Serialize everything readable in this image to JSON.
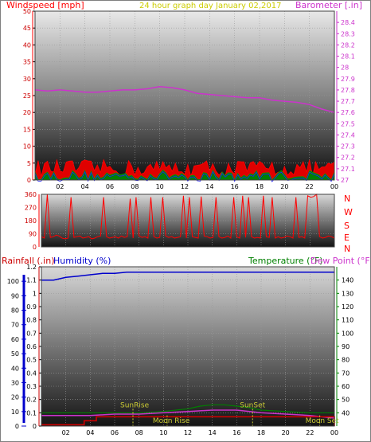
{
  "header": {
    "windspeed_label": "Windspeed [mph]",
    "graph_title": "24 hour graph day   January 02,2017",
    "barometer_label": "Barometer [.in]"
  },
  "bottom_header": {
    "rainfall_label": "Rainfall (.in)",
    "humidity_label": "Humidity (%)",
    "temperature_label": "Temperature (°F)",
    "dewpoint_label": "Dew Point (°F)"
  },
  "compass_labels": [
    "N",
    "W",
    "S",
    "E",
    "N"
  ],
  "annotations": {
    "sunrise": "SunRise",
    "sunset": "SunSet",
    "moonrise": "Moon Rise",
    "moonset": "Moon Set"
  },
  "colors": {
    "windspeed": "#ff0000",
    "wind_gust_fill": "#e00000",
    "wind_avg_fill": "#008000",
    "barometer": "#cc33cc",
    "title": "#cccc00",
    "humidity": "#0000cc",
    "temperature": "#008000",
    "dewpoint": "#cc33cc",
    "rain": "#cc0000",
    "axis_label_red": "#ff0000",
    "axis_label_green": "#008000",
    "axis_label_blue": "#0000cc",
    "sun_moon_marker": "#cccc33",
    "moon_text": "#cccc33"
  },
  "chart_data": [
    {
      "type": "area",
      "title": "24 hour graph day   January 02,2017",
      "x_ticks": [
        "02",
        "04",
        "06",
        "08",
        "10",
        "12",
        "14",
        "16",
        "18",
        "20",
        "22",
        "00"
      ],
      "x_range": [
        0,
        24
      ],
      "grid": true,
      "left_axis": {
        "label": "Windspeed [mph]",
        "ylim": [
          0,
          50
        ],
        "ticks": [
          "0",
          "5",
          "10",
          "15",
          "20",
          "25",
          "30",
          "35",
          "40",
          "45",
          "50"
        ]
      },
      "right_axis": {
        "label": "Barometer [.in]",
        "ylim": [
          27.0,
          28.5
        ],
        "ticks": [
          "27",
          "27.1",
          "27.2",
          "27.3",
          "27.4",
          "27.5",
          "27.6",
          "27.7",
          "27.8",
          "27.9",
          "28",
          "28.1",
          "28.2",
          "28.3",
          "28.4"
        ]
      },
      "series": [
        {
          "name": "Barometer [.in]",
          "axis": "right",
          "x": [
            0,
            1,
            2,
            3,
            4,
            5,
            6,
            7,
            8,
            9,
            10,
            11,
            12,
            13,
            14,
            15,
            16,
            17,
            18,
            19,
            20,
            21,
            22,
            23,
            24
          ],
          "values": [
            27.8,
            27.79,
            27.8,
            27.79,
            27.78,
            27.78,
            27.79,
            27.8,
            27.8,
            27.81,
            27.83,
            27.82,
            27.8,
            27.77,
            27.76,
            27.75,
            27.74,
            27.73,
            27.73,
            27.71,
            27.7,
            27.69,
            27.67,
            27.63,
            27.6
          ]
        }
      ],
      "wind_gust_band": {
        "x_step": 0.25,
        "min": 1,
        "max": 6
      },
      "wind_avg_band": {
        "x_step": 0.25,
        "min": 0,
        "max": 3
      }
    },
    {
      "type": "line",
      "title": "",
      "y_ticks": [
        "0",
        "90",
        "180",
        "270",
        "360"
      ],
      "ylim": [
        0,
        360
      ],
      "x_range": [
        0,
        24
      ],
      "grid": true,
      "series": [
        {
          "name": "",
          "values": [
            70,
            60,
            360,
            65,
            70,
            80,
            75,
            60,
            55,
            60,
            340,
            65,
            70,
            75,
            60,
            65,
            70,
            55,
            60,
            70,
            75,
            340,
            70,
            60,
            65,
            70,
            60,
            75,
            65,
            70,
            330,
            60,
            340,
            75,
            65,
            70,
            60,
            340,
            70,
            60,
            65,
            340,
            75,
            65,
            70,
            60,
            65,
            70,
            350,
            60,
            340,
            70,
            65,
            60,
            345,
            75,
            70,
            60,
            65,
            340,
            70,
            60,
            65,
            75,
            60,
            340,
            70,
            60,
            350,
            65,
            340,
            70,
            60,
            65,
            60,
            350,
            70,
            65,
            340,
            60,
            70,
            60,
            65,
            75,
            70,
            60,
            340,
            65,
            70,
            60,
            350,
            340,
            345,
            360,
            70,
            60,
            65,
            75,
            70,
            60
          ]
        }
      ]
    },
    {
      "type": "line",
      "title": "",
      "x_ticks": [
        "02",
        "04",
        "06",
        "08",
        "10",
        "12",
        "14",
        "16",
        "18",
        "20",
        "22",
        "00"
      ],
      "x_range": [
        0,
        24
      ],
      "grid": true,
      "rain_axis": {
        "label": "Rainfall (.in)",
        "ylim": [
          0,
          1.2
        ],
        "ticks": [
          "0",
          "0.1",
          "0.2",
          "0.3",
          "0.4",
          "0.5",
          "0.6",
          "0.7",
          "0.8",
          "0.9",
          "1",
          "1.1",
          "1.2"
        ]
      },
      "humidity_axis": {
        "label": "Humidity (%)",
        "ylim": [
          0,
          110
        ],
        "ticks": [
          "0",
          "10",
          "20",
          "30",
          "40",
          "50",
          "60",
          "70",
          "80",
          "90",
          "100"
        ]
      },
      "temperature_axis": {
        "label": "Temperature (°F)",
        "ylim": [
          30,
          150
        ],
        "ticks": [
          "40",
          "50",
          "60",
          "70",
          "80",
          "90",
          "100",
          "110",
          "120",
          "130",
          "140"
        ]
      },
      "series": [
        {
          "name": "Humidity (%)",
          "axis": "rain_scale",
          "x": [
            0,
            1,
            2,
            3,
            4,
            5,
            6,
            7,
            8,
            9,
            10,
            11,
            12,
            13,
            14,
            15,
            16,
            17,
            18,
            19,
            20,
            21,
            22,
            23,
            24
          ],
          "values": [
            1.1,
            1.1,
            1.12,
            1.13,
            1.14,
            1.15,
            1.15,
            1.16,
            1.16,
            1.16,
            1.16,
            1.16,
            1.16,
            1.16,
            1.16,
            1.16,
            1.16,
            1.16,
            1.16,
            1.16,
            1.16,
            1.16,
            1.16,
            1.16,
            1.16
          ]
        },
        {
          "name": "Temperature (°F)",
          "axis": "rain_scale",
          "x": [
            0,
            2,
            4,
            6,
            8,
            10,
            12,
            13,
            14,
            15,
            16,
            17,
            18,
            20,
            22,
            24
          ],
          "values": [
            0.1,
            0.1,
            0.1,
            0.1,
            0.1,
            0.11,
            0.13,
            0.15,
            0.16,
            0.16,
            0.15,
            0.14,
            0.12,
            0.11,
            0.1,
            0.1
          ]
        },
        {
          "name": "Dew Point (°F)",
          "axis": "rain_scale",
          "x": [
            0,
            2,
            4,
            6,
            8,
            10,
            12,
            14,
            16,
            18,
            20,
            22,
            24
          ],
          "values": [
            0.08,
            0.08,
            0.08,
            0.09,
            0.09,
            0.1,
            0.11,
            0.12,
            0.12,
            0.1,
            0.09,
            0.08,
            0.06
          ]
        },
        {
          "name": "Rainfall (.in)",
          "axis": "rain_scale",
          "step": true,
          "x": [
            0,
            3.5,
            3.5,
            4.5,
            4.5,
            24,
            24
          ],
          "values": [
            0.01,
            0.01,
            0.04,
            0.04,
            0.07,
            0.07,
            0.0
          ]
        }
      ],
      "markers": [
        {
          "label": "SunRise",
          "x": 7.5
        },
        {
          "label": "SunSet",
          "x": 17.3
        },
        {
          "label": "Moon Rise",
          "x": 10.3
        },
        {
          "label": "Moon Set",
          "x": 22.8
        }
      ]
    }
  ]
}
